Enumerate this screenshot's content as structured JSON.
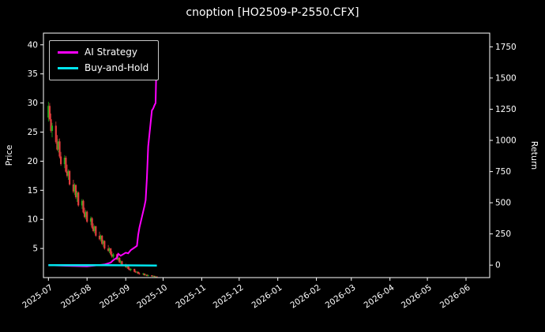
{
  "title": "cnoption [HO2509-P-2550.CFX]",
  "colors": {
    "background": "#000000",
    "text": "#ffffff",
    "axis": "#ffffff",
    "candle_up": "#19b219",
    "candle_down": "#e23d3d"
  },
  "chart_data": {
    "type": "candlestick",
    "title": "cnoption [HO2509-P-2550.CFX]",
    "xlabel": "",
    "legend_position": "upper-left",
    "grid": false,
    "x_domain": [
      "2025-06-27",
      "2026-06-20"
    ],
    "x_ticks": [
      "2025-07",
      "2025-08",
      "2025-09",
      "2025-10",
      "2025-11",
      "2025-12",
      "2026-01",
      "2026-02",
      "2026-03",
      "2026-04",
      "2026-05",
      "2026-06"
    ],
    "price_axis": {
      "label": "Price",
      "ticks": [
        5,
        10,
        15,
        20,
        25,
        30,
        35,
        40
      ],
      "min": 0,
      "max": 42
    },
    "return_axis": {
      "label": "Return",
      "ticks": [
        0,
        250,
        500,
        750,
        1000,
        1250,
        1500,
        1750
      ],
      "min": -100,
      "max": 1860
    },
    "candles": [
      [
        "2025-07-01",
        27.5,
        30.2,
        26.8,
        29.5
      ],
      [
        "2025-07-02",
        29.5,
        30.0,
        26.9,
        27.2
      ],
      [
        "2025-07-03",
        27.2,
        28.2,
        24.9,
        25.2
      ],
      [
        "2025-07-04",
        25.2,
        26.6,
        24.1,
        26.1
      ],
      [
        "2025-07-07",
        26.1,
        26.8,
        23.0,
        23.3
      ],
      [
        "2025-07-08",
        23.3,
        24.5,
        21.8,
        22.0
      ],
      [
        "2025-07-09",
        22.0,
        23.8,
        21.5,
        23.4
      ],
      [
        "2025-07-10",
        23.4,
        23.9,
        20.5,
        20.8
      ],
      [
        "2025-07-11",
        20.8,
        21.6,
        19.2,
        19.5
      ],
      [
        "2025-07-14",
        19.5,
        21.0,
        18.8,
        20.6
      ],
      [
        "2025-07-15",
        20.6,
        20.9,
        18.0,
        18.2
      ],
      [
        "2025-07-16",
        18.2,
        19.4,
        17.2,
        17.5
      ],
      [
        "2025-07-17",
        17.5,
        18.6,
        16.8,
        18.3
      ],
      [
        "2025-07-18",
        18.3,
        18.5,
        15.8,
        16.0
      ],
      [
        "2025-07-21",
        16.0,
        16.8,
        14.5,
        14.8
      ],
      [
        "2025-07-22",
        14.8,
        16.2,
        14.2,
        15.9
      ],
      [
        "2025-07-23",
        15.9,
        16.0,
        13.5,
        13.8
      ],
      [
        "2025-07-24",
        13.8,
        14.9,
        13.0,
        14.6
      ],
      [
        "2025-07-25",
        14.6,
        14.8,
        12.2,
        12.4
      ],
      [
        "2025-07-28",
        12.4,
        13.5,
        11.8,
        13.2
      ],
      [
        "2025-07-29",
        13.2,
        13.4,
        11.0,
        11.2
      ],
      [
        "2025-07-30",
        11.2,
        12.0,
        10.2,
        10.4
      ],
      [
        "2025-07-31",
        10.4,
        11.6,
        10.0,
        11.3
      ],
      [
        "2025-08-01",
        11.3,
        11.5,
        9.4,
        9.6
      ],
      [
        "2025-08-04",
        9.6,
        10.5,
        9.0,
        10.2
      ],
      [
        "2025-08-05",
        10.2,
        10.4,
        8.4,
        8.6
      ],
      [
        "2025-08-06",
        8.6,
        9.3,
        7.8,
        8.0
      ],
      [
        "2025-08-07",
        8.0,
        9.0,
        7.6,
        8.8
      ],
      [
        "2025-08-08",
        8.8,
        8.9,
        7.0,
        7.2
      ],
      [
        "2025-08-11",
        7.2,
        7.9,
        6.4,
        6.6
      ],
      [
        "2025-08-12",
        6.6,
        7.4,
        6.2,
        7.2
      ],
      [
        "2025-08-13",
        7.2,
        7.3,
        5.6,
        5.8
      ],
      [
        "2025-08-14",
        5.8,
        6.5,
        5.3,
        6.3
      ],
      [
        "2025-08-15",
        6.3,
        6.4,
        4.8,
        5.0
      ],
      [
        "2025-08-18",
        5.0,
        5.6,
        4.4,
        4.6
      ],
      [
        "2025-08-19",
        4.6,
        5.2,
        4.2,
        5.0
      ],
      [
        "2025-08-20",
        5.0,
        5.1,
        3.8,
        4.0
      ],
      [
        "2025-08-21",
        4.0,
        4.5,
        3.4,
        3.6
      ],
      [
        "2025-08-22",
        3.6,
        4.2,
        3.3,
        4.0
      ],
      [
        "2025-08-25",
        4.0,
        4.1,
        3.0,
        3.1
      ],
      [
        "2025-08-26",
        3.1,
        3.6,
        2.8,
        3.4
      ],
      [
        "2025-08-27",
        3.4,
        3.5,
        2.5,
        2.6
      ],
      [
        "2025-08-28",
        2.6,
        3.0,
        2.3,
        2.8
      ],
      [
        "2025-08-29",
        2.8,
        2.9,
        2.0,
        2.1
      ],
      [
        "2025-09-01",
        2.1,
        2.4,
        1.7,
        1.8
      ],
      [
        "2025-09-02",
        1.8,
        2.2,
        1.6,
        2.0
      ],
      [
        "2025-09-03",
        2.0,
        2.1,
        1.4,
        1.5
      ],
      [
        "2025-09-04",
        1.5,
        1.8,
        1.2,
        1.3
      ],
      [
        "2025-09-05",
        1.3,
        1.6,
        1.1,
        1.5
      ],
      [
        "2025-09-08",
        1.5,
        1.5,
        0.9,
        1.0
      ],
      [
        "2025-09-09",
        1.0,
        1.2,
        0.8,
        0.9
      ],
      [
        "2025-09-10",
        0.9,
        1.1,
        0.7,
        1.0
      ],
      [
        "2025-09-11",
        1.0,
        1.0,
        0.6,
        0.7
      ],
      [
        "2025-09-12",
        0.7,
        0.9,
        0.5,
        0.6
      ],
      [
        "2025-09-15",
        0.6,
        0.8,
        0.4,
        0.7
      ],
      [
        "2025-09-16",
        0.7,
        0.7,
        0.3,
        0.4
      ],
      [
        "2025-09-17",
        0.4,
        0.6,
        0.3,
        0.5
      ],
      [
        "2025-09-18",
        0.5,
        0.5,
        0.2,
        0.3
      ],
      [
        "2025-09-19",
        0.3,
        0.5,
        0.2,
        0.4
      ],
      [
        "2025-09-22",
        0.4,
        0.4,
        0.15,
        0.2
      ],
      [
        "2025-09-23",
        0.2,
        0.35,
        0.1,
        0.3
      ],
      [
        "2025-09-24",
        0.3,
        0.3,
        0.1,
        0.15
      ],
      [
        "2025-09-25",
        0.15,
        0.25,
        0.08,
        0.2
      ],
      [
        "2025-09-26",
        0.2,
        0.2,
        0.05,
        0.1
      ]
    ],
    "series": [
      {
        "name": "AI Strategy",
        "axis": "return",
        "color": "#ff00ff",
        "width": 2,
        "points": [
          [
            "2025-07-01",
            0
          ],
          [
            "2025-07-15",
            -5
          ],
          [
            "2025-08-01",
            -10
          ],
          [
            "2025-08-15",
            5
          ],
          [
            "2025-08-20",
            20
          ],
          [
            "2025-08-22",
            40
          ],
          [
            "2025-08-25",
            60
          ],
          [
            "2025-08-26",
            90
          ],
          [
            "2025-08-28",
            75
          ],
          [
            "2025-09-01",
            100
          ],
          [
            "2025-09-03",
            95
          ],
          [
            "2025-09-05",
            120
          ],
          [
            "2025-09-08",
            140
          ],
          [
            "2025-09-10",
            155
          ],
          [
            "2025-09-11",
            240
          ],
          [
            "2025-09-12",
            300
          ],
          [
            "2025-09-15",
            430
          ],
          [
            "2025-09-16",
            470
          ],
          [
            "2025-09-17",
            520
          ],
          [
            "2025-09-18",
            700
          ],
          [
            "2025-09-19",
            950
          ],
          [
            "2025-09-22",
            1240
          ],
          [
            "2025-09-23",
            1255
          ],
          [
            "2025-09-24",
            1280
          ],
          [
            "2025-09-25",
            1300
          ],
          [
            "2025-09-26",
            1800
          ]
        ]
      },
      {
        "name": "Buy-and-Hold",
        "axis": "return",
        "color": "#00e5ee",
        "width": 2.5,
        "points": [
          [
            "2025-07-01",
            0
          ],
          [
            "2025-08-15",
            -1
          ],
          [
            "2025-09-26",
            -3
          ]
        ]
      }
    ]
  }
}
